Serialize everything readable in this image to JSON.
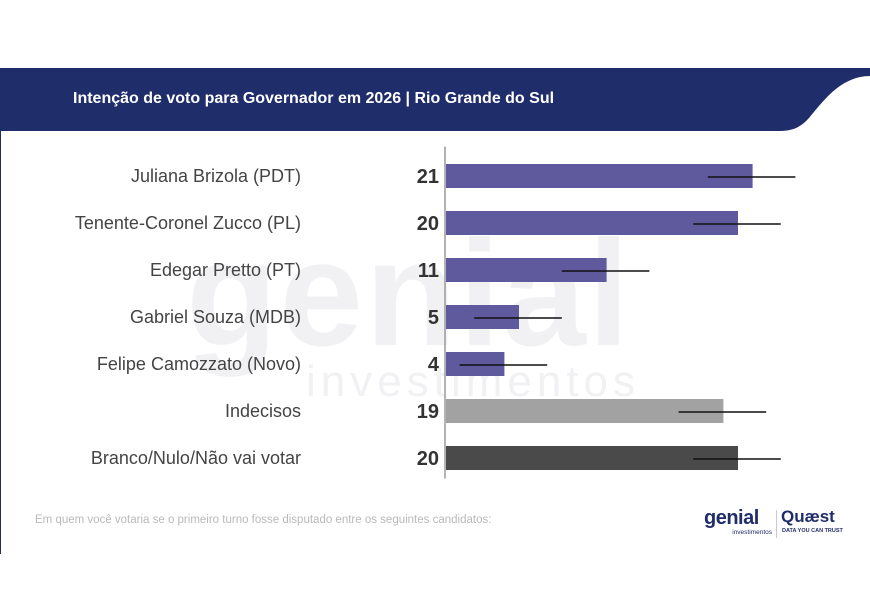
{
  "title": "Intenção de voto para Governador em 2026 | Rio Grande do Sul",
  "watermark": {
    "main": "genial",
    "sub": "investimentos"
  },
  "footnote": "Em quem você votaria se o primeiro turno fosse disputado entre os seguintes candidatos:",
  "logos": {
    "genial": {
      "word": "genial",
      "sub": "investimentos"
    },
    "quaest": {
      "word": "Quæst",
      "sub": "DATA YOU CAN TRUST"
    }
  },
  "colors": {
    "header": "#1f2d6b",
    "candidate": "#5e5a9d",
    "undecided": "#a2a2a2",
    "blank": "#4a4a4a",
    "axis": "#9a9a9a",
    "text": "#444444"
  },
  "chart_data": {
    "type": "bar",
    "orientation": "horizontal",
    "categories": [
      "Juliana Brizola (PDT)",
      "Tenente-Coronel Zucco (PL)",
      "Edegar Pretto (PT)",
      "Gabriel Souza (MDB)",
      "Felipe Camozzato (Novo)",
      "Indecisos",
      "Branco/Nulo/Não vai votar"
    ],
    "values": [
      21,
      20,
      11,
      5,
      4,
      19,
      20
    ],
    "error_margin": 3,
    "bar_colors": [
      "#5e5a9d",
      "#5e5a9d",
      "#5e5a9d",
      "#5e5a9d",
      "#5e5a9d",
      "#a2a2a2",
      "#4a4a4a"
    ],
    "xlim": [
      0,
      28
    ],
    "data_labels": true,
    "grid": false,
    "legend": "none"
  }
}
